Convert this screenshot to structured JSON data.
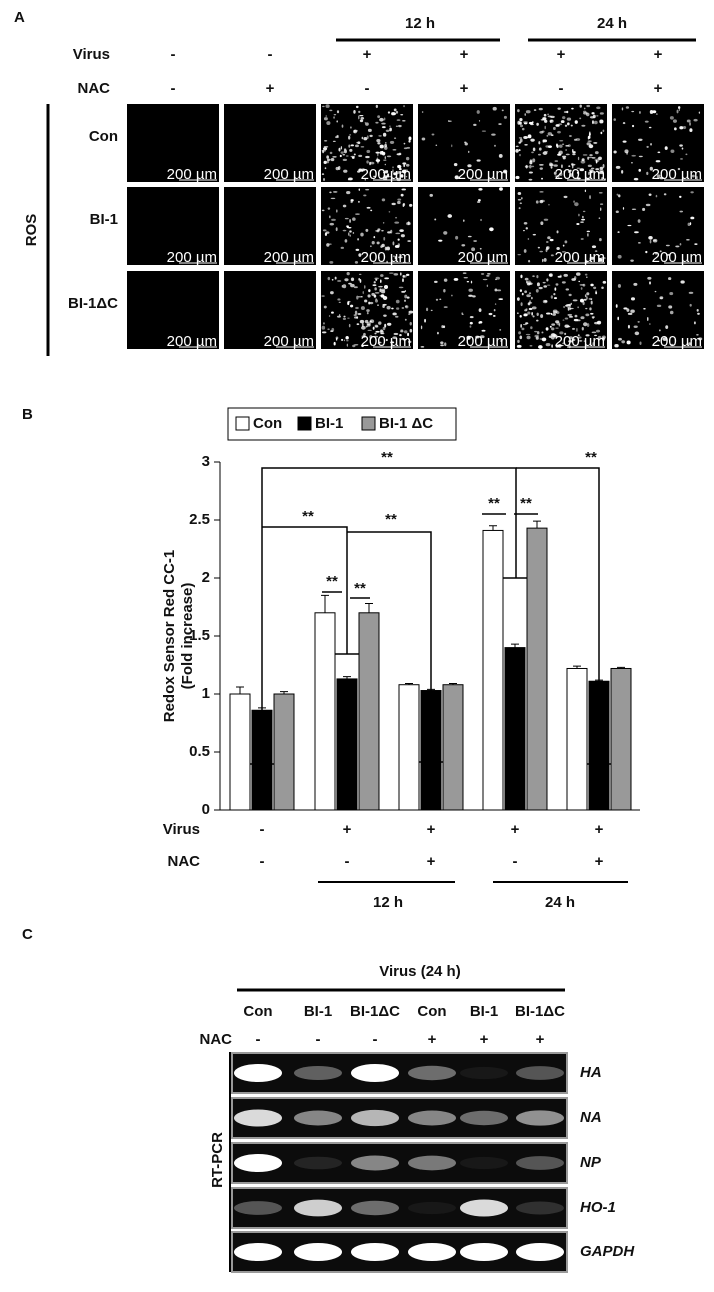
{
  "panel_a": {
    "label": "A",
    "periods": [
      "12 h",
      "24 h"
    ],
    "virus": {
      "label": "Virus",
      "values": [
        "-",
        "-",
        "+",
        "+",
        "+",
        "+"
      ]
    },
    "nac": {
      "label": "NAC",
      "values": [
        "-",
        "+",
        "-",
        "+",
        "-",
        "+"
      ]
    },
    "rows": [
      "Con",
      "BI-1",
      "BI-1ΔC"
    ],
    "side_label": "ROS",
    "scale_bar": "200 µm"
  },
  "chart_data": {
    "type": "bar",
    "panel_label": "B",
    "ylabel": [
      "Redox Sensor Red CC-1",
      "(Fold increase)"
    ],
    "series": [
      {
        "name": "Con",
        "color": "#ffffff",
        "values": [
          1.0,
          1.7,
          1.08,
          2.41,
          1.22
        ],
        "errors": [
          0.06,
          0.15,
          0.01,
          0.04,
          0.02
        ]
      },
      {
        "name": "BI-1",
        "color": "#000000",
        "values": [
          0.86,
          1.13,
          1.03,
          1.4,
          1.11
        ],
        "errors": [
          0.02,
          0.02,
          0.01,
          0.03,
          0.01
        ]
      },
      {
        "name": "BI-1 ΔC",
        "color": "#999999",
        "values": [
          1.0,
          1.7,
          1.08,
          2.43,
          1.22
        ],
        "errors": [
          0.02,
          0.08,
          0.01,
          0.06,
          0.01
        ]
      }
    ],
    "virus": {
      "label": "Virus",
      "values": [
        "-",
        "+",
        "+",
        "+",
        "+"
      ]
    },
    "nac": {
      "label": "NAC",
      "values": [
        "-",
        "-",
        "+",
        "-",
        "+"
      ]
    },
    "periods": [
      "12 h",
      "24 h"
    ],
    "annotations": [
      "**",
      "**",
      "**",
      "**",
      "**",
      "**",
      "**",
      "**"
    ],
    "ylim": [
      0,
      3
    ],
    "yticks": [
      0,
      0.5,
      1,
      1.5,
      2,
      2.5,
      3
    ]
  },
  "panel_c": {
    "label": "C",
    "header": "Virus (24 h)",
    "columns": [
      "Con",
      "BI-1",
      "BI-1ΔC",
      "Con",
      "BI-1",
      "BI-1ΔC"
    ],
    "nac": {
      "label": "NAC",
      "values": [
        "-",
        "-",
        "-",
        "+",
        "+",
        "+"
      ]
    },
    "genes": [
      "HA",
      "NA",
      "NP",
      "HO-1",
      "GAPDH"
    ],
    "side_label": "RT-PCR"
  }
}
